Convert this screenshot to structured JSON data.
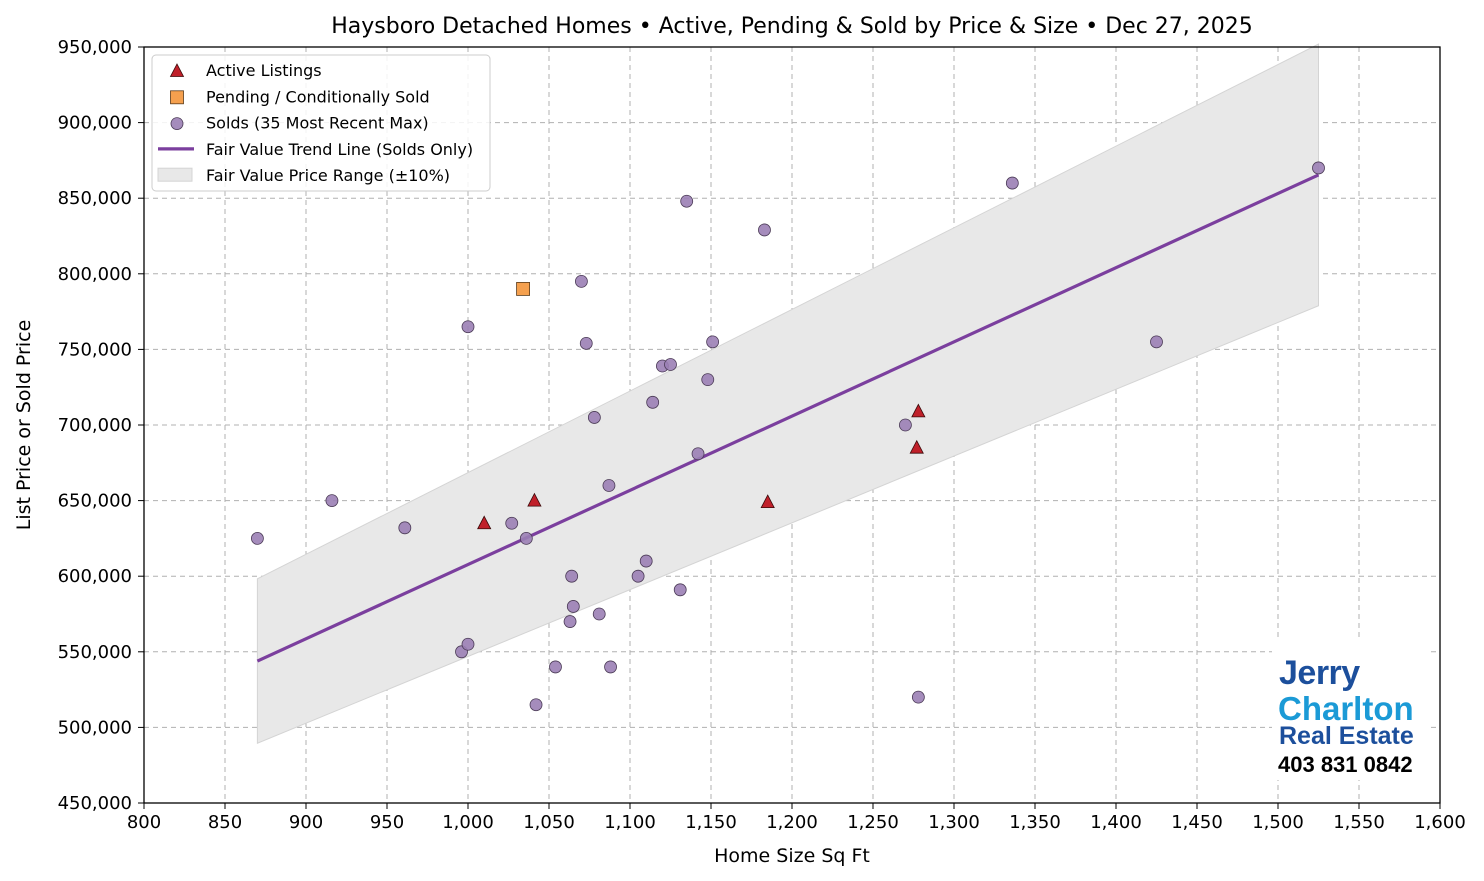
{
  "chart_data": {
    "type": "scatter",
    "title": "Haysboro Detached Homes • Active, Pending & Sold by Price & Size • Dec 27, 2025",
    "xlabel": "Home Size Sq Ft",
    "ylabel": "List Price or Sold Price",
    "xlim": [
      800,
      1600
    ],
    "ylim": [
      450000,
      950000
    ],
    "x_ticks": [
      "800",
      "850",
      "900",
      "950",
      "1,000",
      "1,050",
      "1,100",
      "1,150",
      "1,200",
      "1,250",
      "1,300",
      "1,350",
      "1,400",
      "1,450",
      "1,500",
      "1,550",
      "1,600"
    ],
    "y_ticks": [
      "450,000",
      "500,000",
      "550,000",
      "600,000",
      "650,000",
      "700,000",
      "750,000",
      "800,000",
      "850,000",
      "900,000",
      "950,000"
    ],
    "grid": true,
    "legend_position": "top-left",
    "series": [
      {
        "name": "Active Listings",
        "marker": "triangle",
        "color": "#c0202a",
        "points": [
          [
            1010,
            635000
          ],
          [
            1041,
            650000
          ],
          [
            1185,
            649000
          ],
          [
            1278,
            709000
          ],
          [
            1277,
            685000
          ]
        ]
      },
      {
        "name": "Pending / Conditionally Sold",
        "marker": "square",
        "color": "#f5a04e",
        "points": [
          [
            1034,
            790000
          ]
        ]
      },
      {
        "name": "Solds (35 Most Recent Max)",
        "marker": "circle",
        "color": "#9b7fb5",
        "points": [
          [
            870,
            625000
          ],
          [
            916,
            650000
          ],
          [
            961,
            632000
          ],
          [
            996,
            550000
          ],
          [
            1000,
            555000
          ],
          [
            1000,
            765000
          ],
          [
            1027,
            635000
          ],
          [
            1036,
            625000
          ],
          [
            1042,
            515000
          ],
          [
            1054,
            540000
          ],
          [
            1063,
            570000
          ],
          [
            1064,
            600000
          ],
          [
            1065,
            580000
          ],
          [
            1070,
            795000
          ],
          [
            1073,
            754000
          ],
          [
            1078,
            705000
          ],
          [
            1081,
            575000
          ],
          [
            1087,
            660000
          ],
          [
            1088,
            540000
          ],
          [
            1105,
            600000
          ],
          [
            1110,
            610000
          ],
          [
            1114,
            715000
          ],
          [
            1120,
            739000
          ],
          [
            1125,
            740000
          ],
          [
            1131,
            591000
          ],
          [
            1135,
            848000
          ],
          [
            1142,
            681000
          ],
          [
            1148,
            730000
          ],
          [
            1151,
            755000
          ],
          [
            1183,
            829000
          ],
          [
            1270,
            700000
          ],
          [
            1278,
            520000
          ],
          [
            1336,
            860000
          ],
          [
            1425,
            755000
          ],
          [
            1525,
            870000
          ]
        ]
      },
      {
        "name": "Fair Value Trend Line (Solds Only)",
        "type": "line",
        "color": "#7b3f9e",
        "points": [
          [
            870,
            543900
          ],
          [
            1525,
            865400
          ]
        ]
      },
      {
        "name": "Fair Value Price Range (±10%)",
        "type": "band",
        "color": "#e8e8e8",
        "pct": 10
      }
    ]
  },
  "logo": {
    "line1": "Jerry",
    "line2": "Charlton",
    "line3": "Real Estate",
    "phone": "403 831 0842"
  }
}
